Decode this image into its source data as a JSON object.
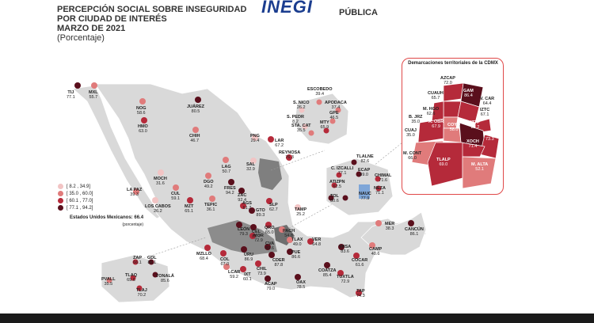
{
  "header": {
    "title_line1": "PERCEPCIÓN SOCIAL SOBRE INSEGURIDAD",
    "title_line1_end": "PÚBLICA",
    "title_line2": "POR CIUDAD DE INTERÉS",
    "title_line3": "MARZO DE 2021",
    "subtitle": "(Porcentaje)",
    "logo": "INEGI"
  },
  "legend": {
    "items": [
      {
        "label": "[  8.2 , 34.9]",
        "color": "#f2c4c4"
      },
      {
        "label": "[ 35.0 , 60.0]",
        "color": "#e07b7b"
      },
      {
        "label": "[ 60.1 , 77.0]",
        "color": "#b52a3a"
      },
      {
        "label": "[ 77.1 , 94.2]",
        "color": "#5a0f1c"
      }
    ],
    "national_label": "Estados Unidos Mexicanos: 66.4",
    "national_note": "(porcentaje)"
  },
  "cities": [
    {
      "name": "TIJ",
      "value": "77.1"
    },
    {
      "name": "MXL",
      "value": "55.7"
    },
    {
      "name": "NOG",
      "value": "58.6"
    },
    {
      "name": "HMO",
      "value": "63.0"
    },
    {
      "name": "JUÁREZ",
      "value": "80.5"
    },
    {
      "name": "CHIH",
      "value": "46.7"
    },
    {
      "name": "MOCH",
      "value": "31.6"
    },
    {
      "name": "LA PAZ",
      "value": "39.3"
    },
    {
      "name": "LOS CABOS",
      "value": "26.2"
    },
    {
      "name": "CUL",
      "value": "59.1"
    },
    {
      "name": "DGO",
      "value": "49.2"
    },
    {
      "name": "MZT",
      "value": "65.1"
    },
    {
      "name": "LAG",
      "value": "50.7"
    },
    {
      "name": "FRES",
      "value": "94.2"
    },
    {
      "name": "ZAC",
      "value": "92.4"
    },
    {
      "name": "TEPIC",
      "value": "36.1"
    },
    {
      "name": "AGS",
      "value": "61.7"
    },
    {
      "name": "GTO",
      "value": "89.3"
    },
    {
      "name": "SLP",
      "value": "62.7"
    },
    {
      "name": "PNG",
      "value": "29.4"
    },
    {
      "name": "SAL",
      "value": "32.9"
    },
    {
      "name": "LAR",
      "value": "67.2"
    },
    {
      "name": "REYNOSA",
      "value": "76.3"
    },
    {
      "name": "TAMP",
      "value": "25.2"
    },
    {
      "name": "ESCOBEDO",
      "value": "39.4"
    },
    {
      "name": "S. NICO",
      "value": "26.2"
    },
    {
      "name": "APODACA",
      "value": "37.4"
    },
    {
      "name": "S. PEDR",
      "value": "8.2"
    },
    {
      "name": "GPE",
      "value": "46.5"
    },
    {
      "name": "STA. CAT",
      "value": "35.5"
    },
    {
      "name": "MTY",
      "value": "65.9"
    },
    {
      "name": "LEÓN",
      "value": "79.3"
    },
    {
      "name": "CEL",
      "value": "85.7"
    },
    {
      "name": "QRO",
      "value": "65.0"
    },
    {
      "name": "MOR",
      "value": "72.9"
    },
    {
      "name": "PACH",
      "value": "54.8"
    },
    {
      "name": "TLAX",
      "value": "49.0"
    },
    {
      "name": "VER",
      "value": "64.8"
    },
    {
      "name": "PUE",
      "value": "86.6"
    },
    {
      "name": "MZLLO",
      "value": "68.4"
    },
    {
      "name": "COL",
      "value": "67.0"
    },
    {
      "name": "URU",
      "value": "86.9"
    },
    {
      "name": "CVA",
      "value": "82.6"
    },
    {
      "name": "CDER",
      "value": "87.8"
    },
    {
      "name": "CHIL",
      "value": "73.9"
    },
    {
      "name": "LCAR",
      "value": "59.2"
    },
    {
      "name": "IXT",
      "value": "60.1"
    },
    {
      "name": "ACAP",
      "value": "79.0"
    },
    {
      "name": "OAX",
      "value": "78.5"
    },
    {
      "name": "ZAP",
      "value": "66.1"
    },
    {
      "name": "GDL",
      "value": "86.1"
    },
    {
      "name": "TLAQ",
      "value": "69.6"
    },
    {
      "name": "TONALÁ",
      "value": "85.6"
    },
    {
      "name": "TLAJ",
      "value": "70.2"
    },
    {
      "name": "PVALL",
      "value": "35.5"
    },
    {
      "name": "MER",
      "value": "38.3"
    },
    {
      "name": "CANCÚN",
      "value": "86.1"
    },
    {
      "name": "CAMP",
      "value": "40.6"
    },
    {
      "name": "VHSA",
      "value": "83.6"
    },
    {
      "name": "COATZA",
      "value": "85.4"
    },
    {
      "name": "COCAR",
      "value": "61.6"
    },
    {
      "name": "TUXTLA",
      "value": "72.9"
    },
    {
      "name": "TAP",
      "value": "74.3"
    },
    {
      "name": "TLALNE",
      "value": "82.6"
    },
    {
      "name": "C. IZCALLI",
      "value": "77.1"
    },
    {
      "name": "ECAP",
      "value": "89.0"
    },
    {
      "name": "CHIMAL",
      "value": "71.6"
    },
    {
      "name": "ATIZPN",
      "value": "62.5"
    },
    {
      "name": "TOL",
      "value": "80.6"
    },
    {
      "name": "NAUC",
      "value": "77.9"
    },
    {
      "name": "NEZA",
      "value": "71.1"
    }
  ],
  "cdmx": {
    "title": "Demarcaciones territoriales de la CDMX",
    "areas": [
      {
        "name": "AZCAP",
        "value": "72.0"
      },
      {
        "name": "GAM",
        "value": "86.4"
      },
      {
        "name": "CUAUH",
        "value": "65.7"
      },
      {
        "name": "V. CAR",
        "value": "64.4"
      },
      {
        "name": "M. HGO",
        "value": "62.6"
      },
      {
        "name": "IZTC",
        "value": "67.1"
      },
      {
        "name": "B. JRZ",
        "value": "35.0"
      },
      {
        "name": "COYO",
        "value": "58.0"
      },
      {
        "name": "IZTP",
        "value": "82.2"
      },
      {
        "name": "CUAJ",
        "value": "35.0"
      },
      {
        "name": "A. OBR",
        "value": "67.9"
      },
      {
        "name": "XOCH",
        "value": "71.4"
      },
      {
        "name": "TLHC",
        "value": "73.3"
      },
      {
        "name": "M. CONT",
        "value": "66.0"
      },
      {
        "name": "TLALP",
        "value": "69.0"
      },
      {
        "name": "M. ALTA",
        "value": "52.1"
      }
    ]
  }
}
